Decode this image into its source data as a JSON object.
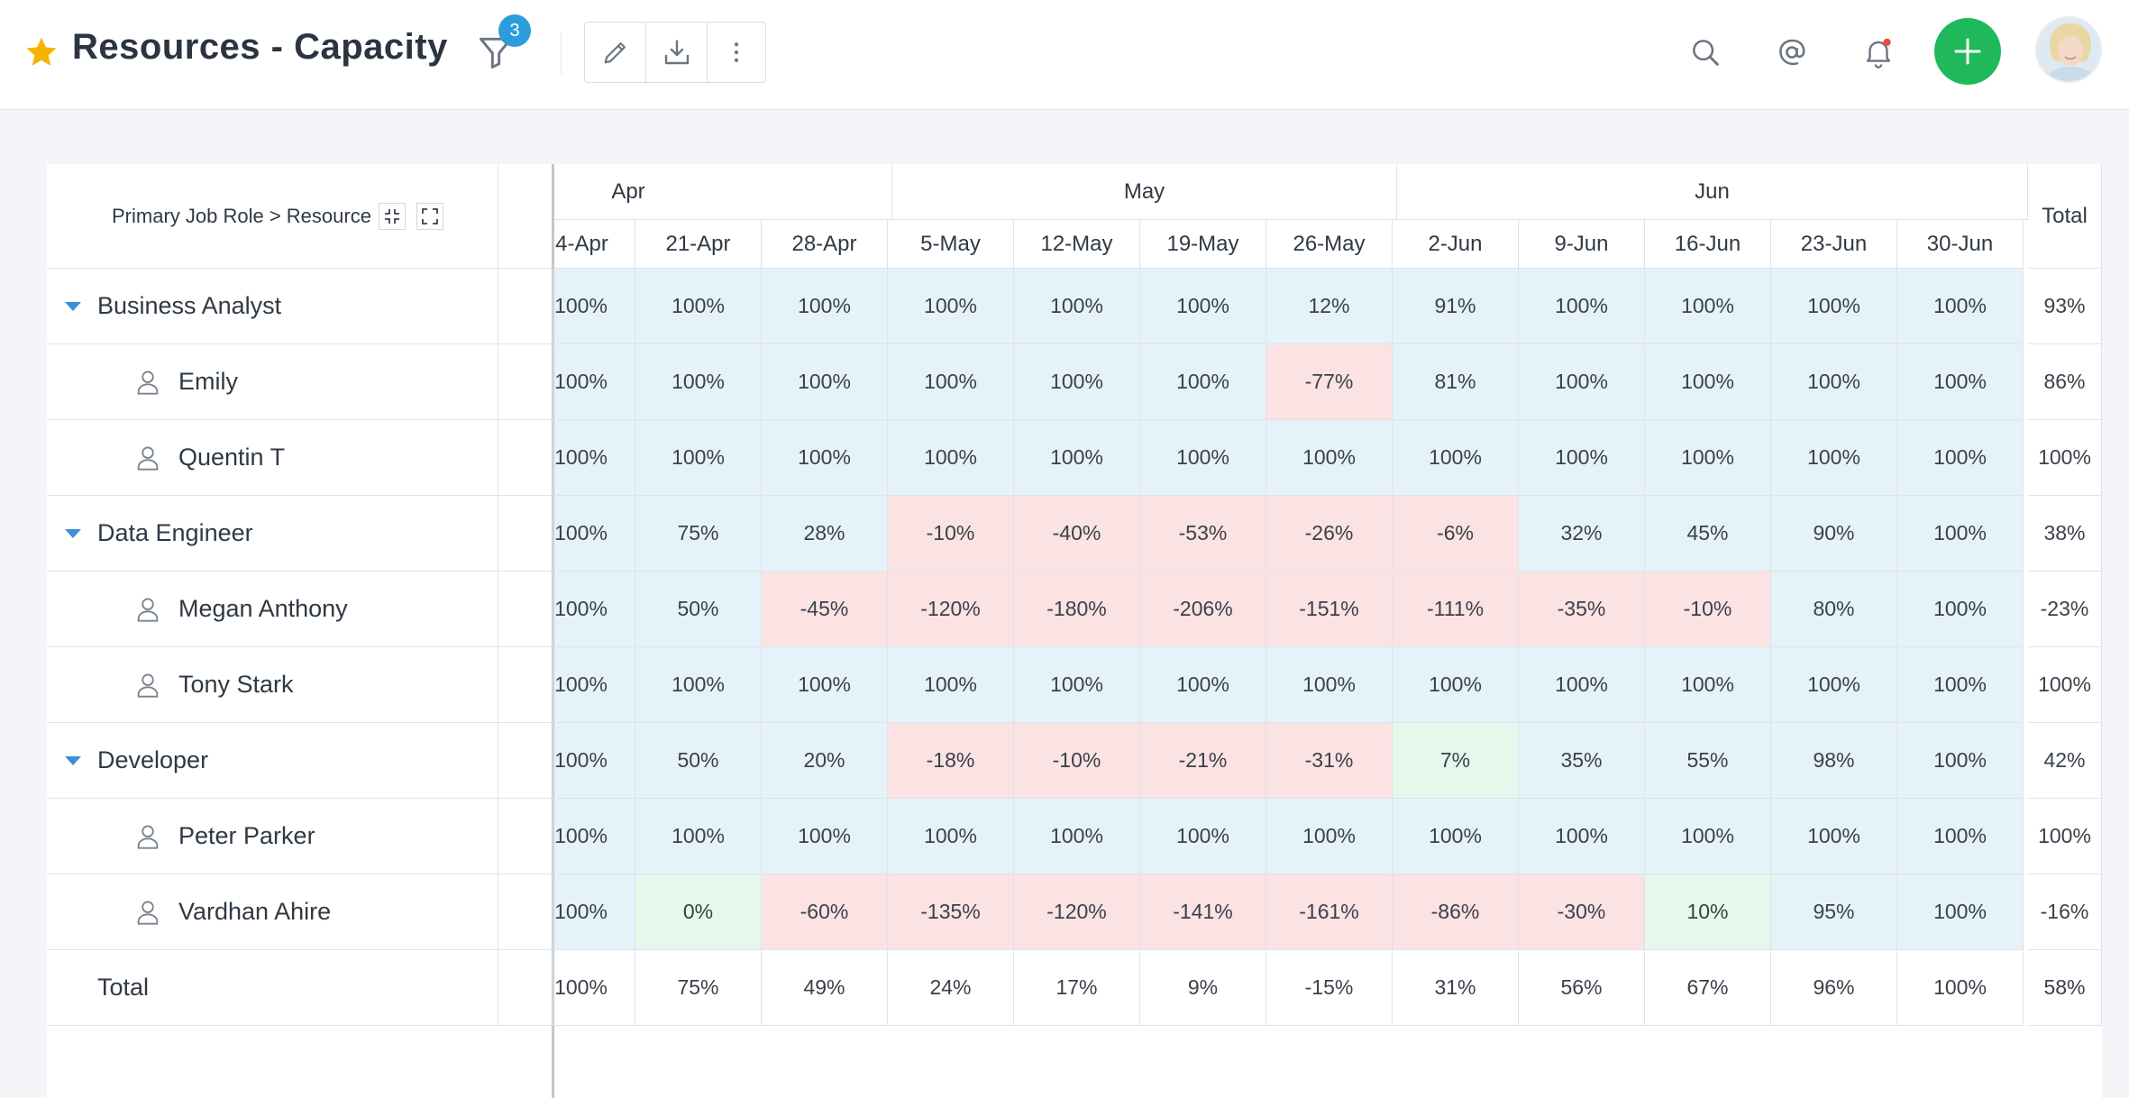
{
  "header": {
    "title": "Resources - Capacity",
    "filter_count": "3",
    "icons": [
      "star-icon",
      "filter-icon",
      "edit-icon",
      "download-icon",
      "more-icon",
      "search-icon",
      "mention-icon",
      "bell-icon",
      "add-icon"
    ]
  },
  "colors": {
    "accent": "#2d9cdb",
    "add": "#1fb95c",
    "star": "#f4b400",
    "over": "#fbe2e3",
    "under": "#e5f2fa",
    "low": "#e5f8ec"
  },
  "grid": {
    "group_header": "Primary Job Role > Resource",
    "months": [
      "Apr",
      "May",
      "Jun"
    ],
    "weeks": [
      "4-Apr",
      "21-Apr",
      "28-Apr",
      "5-May",
      "12-May",
      "19-May",
      "26-May",
      "2-Jun",
      "9-Jun",
      "16-Jun",
      "23-Jun",
      "30-Jun"
    ],
    "total_label": "Total",
    "rows": [
      {
        "label": "Business Analyst",
        "type": "group",
        "values": [
          "100%",
          "100%",
          "100%",
          "100%",
          "100%",
          "100%",
          "12%",
          "91%",
          "100%",
          "100%",
          "100%",
          "100%"
        ],
        "total": "93%",
        "status": [
          "b",
          "b",
          "b",
          "b",
          "b",
          "b",
          "b",
          "b",
          "b",
          "b",
          "b",
          "b"
        ]
      },
      {
        "label": "Emily",
        "type": "resource",
        "values": [
          "100%",
          "100%",
          "100%",
          "100%",
          "100%",
          "100%",
          "-77%",
          "81%",
          "100%",
          "100%",
          "100%",
          "100%"
        ],
        "total": "86%",
        "status": [
          "b",
          "b",
          "b",
          "b",
          "b",
          "b",
          "r",
          "b",
          "b",
          "b",
          "b",
          "b"
        ]
      },
      {
        "label": "Quentin T",
        "type": "resource",
        "values": [
          "100%",
          "100%",
          "100%",
          "100%",
          "100%",
          "100%",
          "100%",
          "100%",
          "100%",
          "100%",
          "100%",
          "100%"
        ],
        "total": "100%",
        "status": [
          "b",
          "b",
          "b",
          "b",
          "b",
          "b",
          "b",
          "b",
          "b",
          "b",
          "b",
          "b"
        ]
      },
      {
        "label": "Data Engineer",
        "type": "group",
        "values": [
          "100%",
          "75%",
          "28%",
          "-10%",
          "-40%",
          "-53%",
          "-26%",
          "-6%",
          "32%",
          "45%",
          "90%",
          "100%"
        ],
        "total": "38%",
        "status": [
          "b",
          "b",
          "b",
          "r",
          "r",
          "r",
          "r",
          "r",
          "b",
          "b",
          "b",
          "b"
        ]
      },
      {
        "label": "Megan Anthony",
        "type": "resource",
        "values": [
          "100%",
          "50%",
          "-45%",
          "-120%",
          "-180%",
          "-206%",
          "-151%",
          "-111%",
          "-35%",
          "-10%",
          "80%",
          "100%"
        ],
        "total": "-23%",
        "status": [
          "b",
          "b",
          "r",
          "r",
          "r",
          "r",
          "r",
          "r",
          "r",
          "r",
          "b",
          "b"
        ]
      },
      {
        "label": "Tony Stark",
        "type": "resource",
        "values": [
          "100%",
          "100%",
          "100%",
          "100%",
          "100%",
          "100%",
          "100%",
          "100%",
          "100%",
          "100%",
          "100%",
          "100%"
        ],
        "total": "100%",
        "status": [
          "b",
          "b",
          "b",
          "b",
          "b",
          "b",
          "b",
          "b",
          "b",
          "b",
          "b",
          "b"
        ]
      },
      {
        "label": "Developer",
        "type": "group",
        "values": [
          "100%",
          "50%",
          "20%",
          "-18%",
          "-10%",
          "-21%",
          "-31%",
          "7%",
          "35%",
          "55%",
          "98%",
          "100%"
        ],
        "total": "42%",
        "status": [
          "b",
          "b",
          "b",
          "r",
          "r",
          "r",
          "r",
          "g",
          "b",
          "b",
          "b",
          "b"
        ]
      },
      {
        "label": "Peter Parker",
        "type": "resource",
        "values": [
          "100%",
          "100%",
          "100%",
          "100%",
          "100%",
          "100%",
          "100%",
          "100%",
          "100%",
          "100%",
          "100%",
          "100%"
        ],
        "total": "100%",
        "status": [
          "b",
          "b",
          "b",
          "b",
          "b",
          "b",
          "b",
          "b",
          "b",
          "b",
          "b",
          "b"
        ]
      },
      {
        "label": "Vardhan Ahire",
        "type": "resource",
        "values": [
          "100%",
          "0%",
          "-60%",
          "-135%",
          "-120%",
          "-141%",
          "-161%",
          "-86%",
          "-30%",
          "10%",
          "95%",
          "100%"
        ],
        "total": "-16%",
        "status": [
          "b",
          "g",
          "r",
          "r",
          "r",
          "r",
          "r",
          "r",
          "r",
          "g",
          "b",
          "b"
        ]
      },
      {
        "label": "Total",
        "type": "total",
        "values": [
          "100%",
          "75%",
          "49%",
          "24%",
          "17%",
          "9%",
          "-15%",
          "31%",
          "56%",
          "67%",
          "96%",
          "100%"
        ],
        "total": "58%",
        "status": [
          "w",
          "w",
          "w",
          "w",
          "w",
          "w",
          "w",
          "w",
          "w",
          "w",
          "w",
          "w"
        ]
      }
    ]
  }
}
